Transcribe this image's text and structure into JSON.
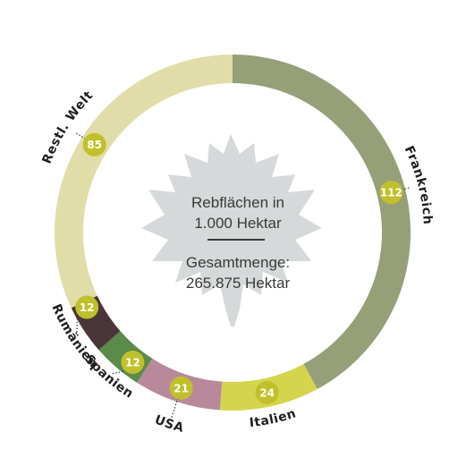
{
  "chart_data": {
    "type": "pie",
    "style": "donut",
    "total": 265.875,
    "series": [
      {
        "label": "Frankreich",
        "value": 112,
        "color": "#959f78"
      },
      {
        "label": "Italien",
        "value": 24,
        "color": "#d4d54c"
      },
      {
        "label": "USA",
        "value": 21,
        "color": "#b8899b"
      },
      {
        "label": "Spanien",
        "value": 12,
        "color": "#5b8a4a"
      },
      {
        "label": "Rumänien",
        "value": 12,
        "color": "#4a3638"
      },
      {
        "label": "Restl. Welt",
        "value": 85,
        "color": "#e0dda8"
      }
    ],
    "center": {
      "title_line1": "Rebflächen in",
      "title_line2": "1.000 Hektar",
      "total_line1": "Gesamtmenge:",
      "total_line2": "265.875 Hektar"
    },
    "badge_color": "#c0c02a",
    "leaf_color": "#d5d9da"
  }
}
